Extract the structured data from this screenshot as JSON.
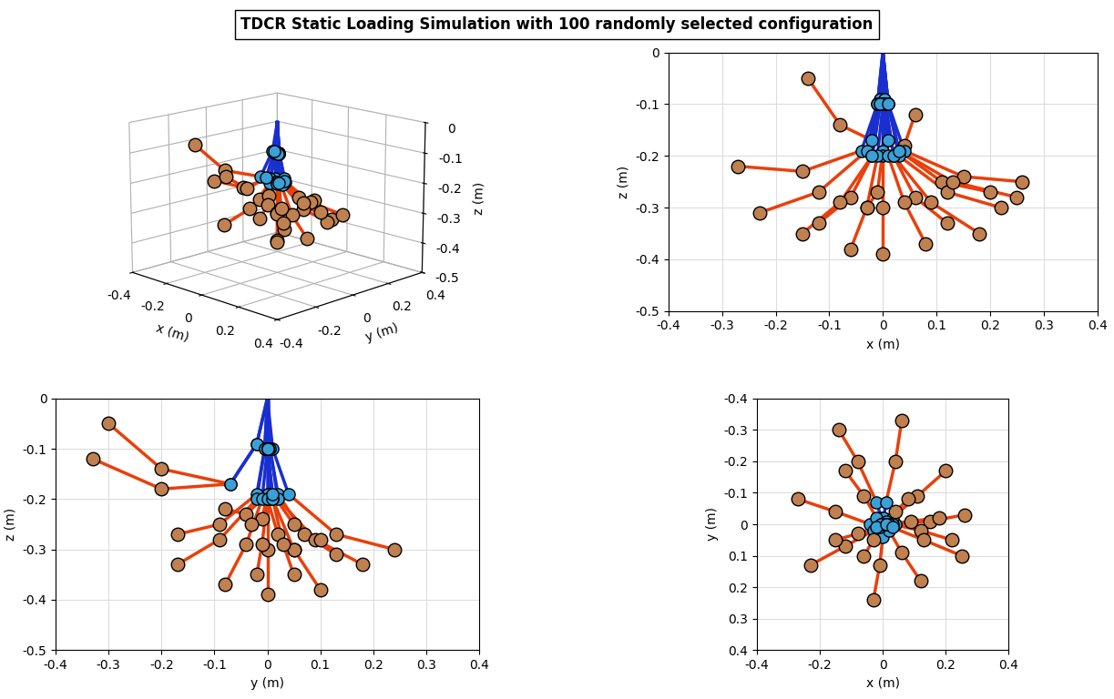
{
  "title": "TDCR Static Loading Simulation with 100 randomly selected configuration",
  "colors": [
    "#1a2fd0",
    "#e8400c"
  ],
  "configurations": [
    {
      "section1": [
        [
          0,
          0,
          0
        ],
        [
          -0.005,
          -0.02,
          -0.09
        ],
        [
          -0.02,
          -0.07,
          -0.17
        ]
      ],
      "section2": [
        [
          -0.08,
          -0.2,
          -0.14
        ],
        [
          -0.14,
          -0.3,
          -0.05
        ]
      ]
    },
    {
      "section1": [
        [
          0,
          0,
          0
        ],
        [
          0.003,
          -0.02,
          -0.09
        ],
        [
          0.01,
          -0.07,
          -0.17
        ]
      ],
      "section2": [
        [
          0.04,
          -0.2,
          -0.18
        ],
        [
          0.06,
          -0.33,
          -0.12
        ]
      ]
    },
    {
      "section1": [
        [
          0,
          0,
          0
        ],
        [
          -0.01,
          0,
          -0.1
        ],
        [
          -0.04,
          0,
          -0.19
        ]
      ],
      "section2": [
        [
          -0.15,
          -0.04,
          -0.23
        ],
        [
          -0.27,
          -0.08,
          -0.22
        ]
      ]
    },
    {
      "section1": [
        [
          0,
          0,
          0
        ],
        [
          0.01,
          0,
          -0.1
        ],
        [
          0.04,
          0,
          -0.19
        ]
      ],
      "section2": [
        [
          0.15,
          -0.01,
          -0.24
        ],
        [
          0.26,
          -0.03,
          -0.25
        ]
      ]
    },
    {
      "section1": [
        [
          0,
          0,
          0
        ],
        [
          0.01,
          -0.005,
          -0.1
        ],
        [
          0.03,
          -0.02,
          -0.19
        ]
      ],
      "section2": [
        [
          0.11,
          -0.09,
          -0.25
        ],
        [
          0.2,
          -0.17,
          -0.27
        ]
      ]
    },
    {
      "section1": [
        [
          0,
          0,
          0
        ],
        [
          -0.01,
          0.005,
          -0.1
        ],
        [
          -0.03,
          0.02,
          -0.19
        ]
      ],
      "section2": [
        [
          -0.12,
          0.07,
          -0.27
        ],
        [
          -0.23,
          0.13,
          -0.31
        ]
      ]
    },
    {
      "section1": [
        [
          0,
          0,
          0
        ],
        [
          0,
          0.01,
          -0.1
        ],
        [
          0,
          0.04,
          -0.19
        ]
      ],
      "section2": [
        [
          -0.01,
          0.13,
          -0.27
        ],
        [
          -0.03,
          0.24,
          -0.3
        ]
      ]
    },
    {
      "section1": [
        [
          0,
          0,
          0
        ],
        [
          0.01,
          0,
          -0.1
        ],
        [
          0.03,
          0,
          -0.2
        ]
      ],
      "section2": [
        [
          0.12,
          0.02,
          -0.27
        ],
        [
          0.22,
          0.05,
          -0.3
        ]
      ]
    },
    {
      "section1": [
        [
          0,
          0,
          0
        ],
        [
          -0.005,
          -0.005,
          -0.1
        ],
        [
          -0.02,
          -0.02,
          -0.2
        ]
      ],
      "section2": [
        [
          -0.06,
          -0.09,
          -0.28
        ],
        [
          -0.12,
          -0.17,
          -0.33
        ]
      ]
    },
    {
      "section1": [
        [
          0,
          0,
          0
        ],
        [
          0.005,
          0.005,
          -0.1
        ],
        [
          0.02,
          0.02,
          -0.2
        ]
      ],
      "section2": [
        [
          0.06,
          0.09,
          -0.28
        ],
        [
          0.12,
          0.18,
          -0.33
        ]
      ]
    },
    {
      "section1": [
        [
          0,
          0,
          0
        ],
        [
          0,
          0,
          -0.1
        ],
        [
          0,
          0,
          -0.2
        ]
      ],
      "section2": [
        [
          0,
          0,
          -0.3
        ],
        [
          0,
          0,
          -0.39
        ]
      ]
    },
    {
      "section1": [
        [
          0,
          0,
          0
        ],
        [
          0,
          0,
          -0.1
        ],
        [
          -0.01,
          0.01,
          -0.2
        ]
      ],
      "section2": [
        [
          -0.03,
          0.05,
          -0.3
        ],
        [
          -0.06,
          0.1,
          -0.38
        ]
      ]
    },
    {
      "section1": [
        [
          0,
          0,
          0
        ],
        [
          0,
          0,
          -0.1
        ],
        [
          0.01,
          -0.01,
          -0.2
        ]
      ],
      "section2": [
        [
          0.04,
          -0.04,
          -0.29
        ],
        [
          0.08,
          -0.08,
          -0.37
        ]
      ]
    },
    {
      "section1": [
        [
          0,
          0,
          0
        ],
        [
          0.005,
          0,
          -0.1
        ],
        [
          0.02,
          0,
          -0.2
        ]
      ],
      "section2": [
        [
          0.09,
          -0.01,
          -0.29
        ],
        [
          0.18,
          -0.02,
          -0.35
        ]
      ]
    },
    {
      "section1": [
        [
          0,
          0,
          0
        ],
        [
          -0.005,
          0,
          -0.1
        ],
        [
          -0.02,
          0.01,
          -0.2
        ]
      ],
      "section2": [
        [
          -0.08,
          0.03,
          -0.29
        ],
        [
          -0.15,
          0.05,
          -0.35
        ]
      ]
    },
    {
      "section1": [
        [
          0,
          0,
          0
        ],
        [
          0.01,
          0,
          -0.1
        ],
        [
          0.03,
          0.01,
          -0.19
        ]
      ],
      "section2": [
        [
          0.13,
          0.05,
          -0.25
        ],
        [
          0.25,
          0.1,
          -0.28
        ]
      ]
    }
  ],
  "chart_data": [
    {
      "type": "line3d",
      "xlabel": "x (m)",
      "ylabel": "y (m)",
      "zlabel": "z (m)",
      "xlim": [
        -0.4,
        0.4
      ],
      "ylim": [
        -0.4,
        0.4
      ],
      "zlim": [
        -0.5,
        0
      ],
      "xticks": [
        -0.4,
        -0.2,
        0,
        0.2,
        0.4
      ],
      "yticks": [
        -0.4,
        -0.2,
        0,
        0.2,
        0.4
      ],
      "zticks": [
        -0.5,
        -0.4,
        -0.3,
        -0.2,
        -0.1,
        0
      ],
      "grid": true
    },
    {
      "type": "line",
      "xlabel": "x (m)",
      "ylabel": "z (m)",
      "xlim": [
        -0.4,
        0.4
      ],
      "ylim": [
        -0.5,
        0
      ],
      "xticks": [
        -0.4,
        -0.3,
        -0.2,
        -0.1,
        0,
        0.1,
        0.2,
        0.3,
        0.4
      ],
      "yticks": [
        -0.5,
        -0.4,
        -0.3,
        -0.2,
        -0.1,
        0
      ],
      "grid": true
    },
    {
      "type": "line",
      "xlabel": "y (m)",
      "ylabel": "z (m)",
      "xlim": [
        -0.4,
        0.4
      ],
      "ylim": [
        -0.5,
        0
      ],
      "xticks": [
        -0.4,
        -0.3,
        -0.2,
        -0.1,
        0,
        0.1,
        0.2,
        0.3,
        0.4
      ],
      "yticks": [
        -0.5,
        -0.4,
        -0.3,
        -0.2,
        -0.1,
        0
      ],
      "grid": true
    },
    {
      "type": "line",
      "xlabel": "x (m)",
      "ylabel": "y (m)",
      "xlim": [
        -0.4,
        0.4
      ],
      "ylim": [
        0.4,
        -0.4
      ],
      "xticks": [
        -0.4,
        -0.2,
        0,
        0.2,
        0.4
      ],
      "yticks": [
        -0.4,
        -0.3,
        -0.2,
        -0.1,
        0,
        0.1,
        0.2,
        0.3,
        0.4
      ],
      "grid": true
    }
  ]
}
